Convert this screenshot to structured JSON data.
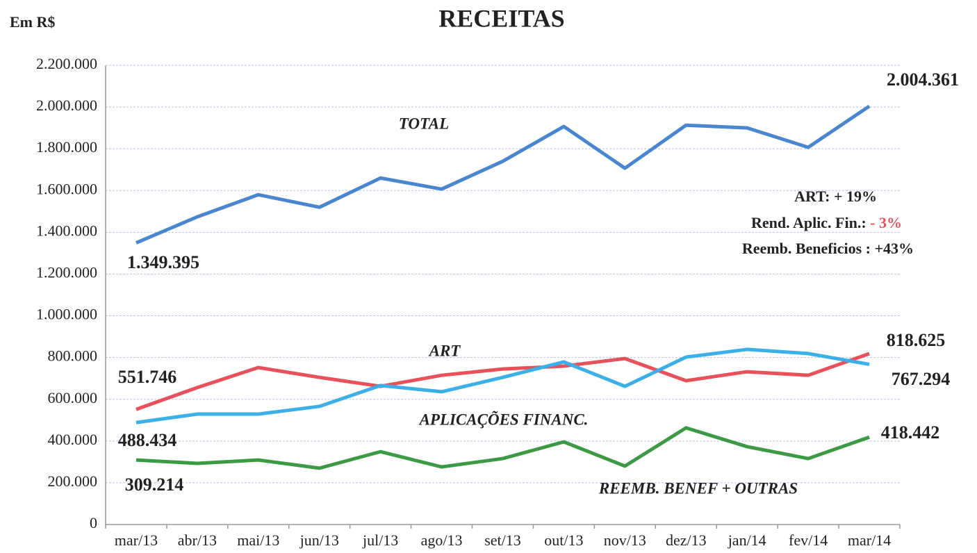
{
  "chart_data": {
    "type": "line",
    "title": "RECEITAS",
    "unit_label": "Em R$",
    "categories": [
      "mar/13",
      "abr/13",
      "mai/13",
      "jun/13",
      "jul/13",
      "ago/13",
      "set/13",
      "out/13",
      "nov/13",
      "dez/13",
      "jan/14",
      "fev/14",
      "mar/14"
    ],
    "series": [
      {
        "name": "TOTAL",
        "color": "#4a86d0",
        "values": [
          1349395,
          1474000,
          1580000,
          1520000,
          1660000,
          1607000,
          1740000,
          1907000,
          1707000,
          1913000,
          1900000,
          1807000,
          2004361
        ],
        "value_labels": [
          "1.349.395",
          null,
          null,
          null,
          null,
          null,
          null,
          null,
          null,
          null,
          null,
          null,
          "2.004.361"
        ]
      },
      {
        "name": "ART",
        "color": "#e8505a",
        "values": [
          551746,
          656000,
          752000,
          705000,
          662000,
          715000,
          745000,
          759000,
          795000,
          689000,
          732000,
          715000,
          818625
        ],
        "value_labels": [
          "551.746",
          null,
          null,
          null,
          null,
          null,
          null,
          null,
          null,
          null,
          null,
          null,
          "818.625"
        ]
      },
      {
        "name": "APLICAÇÕES FINANC.",
        "color": "#3bb0e8",
        "values": [
          488434,
          529000,
          529000,
          566000,
          666000,
          636000,
          705000,
          779000,
          662000,
          802000,
          839000,
          819000,
          767294
        ],
        "value_labels": [
          "488.434",
          null,
          null,
          null,
          null,
          null,
          null,
          null,
          null,
          null,
          null,
          null,
          "767.294"
        ]
      },
      {
        "name": "REEMB. BENEF + OUTRAS",
        "color": "#3c9a45",
        "values": [
          309214,
          293000,
          309000,
          270000,
          349000,
          276000,
          316000,
          396000,
          280000,
          463000,
          373000,
          316000,
          418442
        ],
        "value_labels": [
          "309.214",
          null,
          null,
          null,
          null,
          null,
          null,
          null,
          null,
          null,
          null,
          null,
          "418.442"
        ]
      }
    ],
    "ylim": [
      0,
      2200000
    ],
    "yticks": [
      0,
      {
        "value": 200000,
        "label": "200.000"
      },
      {
        "value": 400000,
        "label": "400.000"
      },
      {
        "value": 600000,
        "label": "600.000"
      },
      {
        "value": 800000,
        "label": "800.000"
      },
      {
        "value": 1000000,
        "label": "1.000.000"
      },
      {
        "value": 1200000,
        "label": "1.200.000"
      },
      {
        "value": 1400000,
        "label": "1.400.000"
      },
      {
        "value": 1600000,
        "label": "1.600.000"
      },
      {
        "value": 1800000,
        "label": "1.800.000"
      },
      {
        "value": 2000000,
        "label": "2.000.000"
      },
      {
        "value": 2200000,
        "label": "2.200.000"
      }
    ],
    "grid": true,
    "annotations": [
      [
        {
          "text": "ART: + 19%",
          "color": "#222"
        }
      ],
      [
        {
          "text": "Rend. Aplic. Fin.:",
          "color": "#222"
        },
        {
          "text": " - 3%",
          "color": "#e8505a"
        }
      ],
      [
        {
          "text": "Reemb. Beneficios : +43%",
          "color": "#222"
        }
      ]
    ]
  }
}
